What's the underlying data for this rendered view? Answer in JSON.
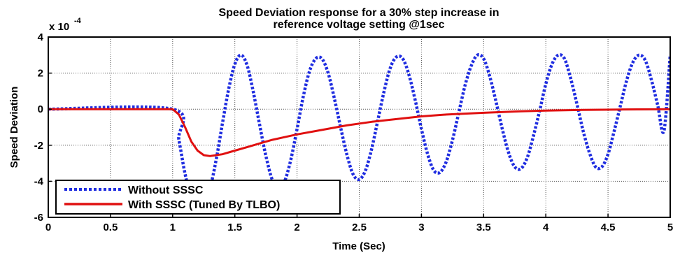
{
  "chart_data": {
    "type": "line",
    "title_line1": "Speed Deviation response for a 30% step increase in",
    "title_line2": "reference voltage setting @1sec",
    "xlabel": "Time (Sec)",
    "ylabel": "Speed Deviation",
    "y_multiplier": "x 10",
    "y_multiplier_exponent": "-4",
    "xlim": [
      0,
      5
    ],
    "ylim": [
      -6,
      4
    ],
    "x_ticks": [
      "0",
      "0.5",
      "1",
      "1.5",
      "2",
      "2.5",
      "3",
      "3.5",
      "4",
      "4.5",
      "5"
    ],
    "y_ticks": [
      "4",
      "2",
      "0",
      "-2",
      "-4",
      "-6"
    ],
    "grid": true,
    "legend_position": "bottom-left",
    "series": [
      {
        "name": "Without SSSC",
        "color": "#1f2de0",
        "style": "dotted",
        "x": [
          0,
          1.0,
          1.05,
          1.1,
          1.15,
          1.2,
          1.25,
          1.3,
          1.35,
          1.4,
          1.45,
          1.5,
          1.55,
          1.6,
          1.65,
          1.7,
          1.75,
          1.8,
          1.85,
          1.9,
          1.95,
          2.0,
          2.05,
          2.1,
          2.15,
          2.2,
          2.25,
          2.3,
          2.35,
          2.4,
          2.45,
          2.5,
          2.55,
          2.6,
          2.65,
          2.7,
          2.75,
          2.8,
          2.85,
          2.9,
          2.95,
          3.0,
          3.05,
          3.1,
          3.15,
          3.2,
          3.25,
          3.3,
          3.35,
          3.4,
          3.45,
          3.5,
          3.55,
          3.6,
          3.65,
          3.7,
          3.75,
          3.8,
          3.85,
          3.9,
          3.95,
          4.0,
          4.05,
          4.1,
          4.15,
          4.2,
          4.25,
          4.3,
          4.35,
          4.4,
          4.45,
          4.5,
          4.55,
          4.6,
          4.65,
          4.7,
          4.75,
          4.8,
          4.85,
          4.9,
          4.95,
          5.0
        ],
        "y": [
          0,
          0,
          -1.7,
          -3.6,
          -4.9,
          -5.5,
          -5.3,
          -4.4,
          -2.8,
          -0.8,
          1.1,
          2.5,
          3.0,
          2.4,
          0.9,
          -0.9,
          -2.6,
          -3.9,
          -4.4,
          -4.0,
          -2.8,
          -1.1,
          0.7,
          2.1,
          2.8,
          2.8,
          2.0,
          0.6,
          -1.0,
          -2.5,
          -3.6,
          -3.9,
          -3.4,
          -2.2,
          -0.6,
          1.0,
          2.3,
          2.9,
          2.8,
          1.9,
          0.5,
          -1.1,
          -2.5,
          -3.4,
          -3.5,
          -2.9,
          -1.7,
          -0.2,
          1.3,
          2.4,
          3.0,
          2.8,
          1.8,
          0.4,
          -1.1,
          -2.4,
          -3.2,
          -3.3,
          -2.7,
          -1.5,
          -0.1,
          1.4,
          2.5,
          3.0,
          2.8,
          1.7,
          0.3,
          -1.2,
          -2.4,
          -3.2,
          -3.2,
          -2.5,
          -1.2,
          0.2,
          1.6,
          2.6,
          3.0,
          2.7,
          1.6,
          0.2,
          -1.2,
          3.0
        ]
      },
      {
        "name": "With SSSC (Tuned By TLBO)",
        "color": "#e01010",
        "style": "solid",
        "x": [
          0,
          1.0,
          1.05,
          1.1,
          1.15,
          1.2,
          1.25,
          1.3,
          1.35,
          1.4,
          1.5,
          1.6,
          1.7,
          1.8,
          1.9,
          2.0,
          2.2,
          2.4,
          2.6,
          2.8,
          3.0,
          3.2,
          3.5,
          3.8,
          4.0,
          4.3,
          4.6,
          5.0
        ],
        "y": [
          0,
          0,
          -0.3,
          -1.0,
          -1.8,
          -2.3,
          -2.55,
          -2.6,
          -2.55,
          -2.5,
          -2.3,
          -2.1,
          -1.9,
          -1.7,
          -1.55,
          -1.4,
          -1.15,
          -0.9,
          -0.7,
          -0.55,
          -0.4,
          -0.3,
          -0.2,
          -0.12,
          -0.08,
          -0.04,
          -0.02,
          0
        ]
      }
    ]
  }
}
